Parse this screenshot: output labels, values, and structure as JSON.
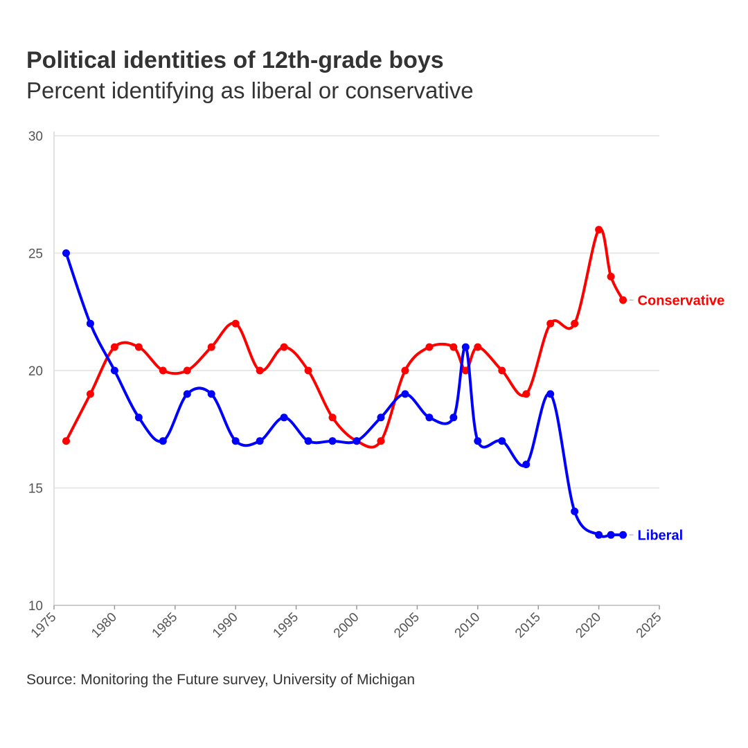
{
  "chart_data": {
    "type": "line",
    "title": "Political identities of 12th-grade boys",
    "subtitle": "Percent identifying as liberal or conservative",
    "source": "Source: Monitoring the Future survey, University of Michigan",
    "xlim": [
      1975,
      2025
    ],
    "ylim": [
      10,
      30
    ],
    "x_ticks": [
      1975,
      1980,
      1985,
      1990,
      1995,
      2000,
      2005,
      2010,
      2015,
      2020,
      2025
    ],
    "y_ticks": [
      10,
      15,
      20,
      25,
      30
    ],
    "grid": "horizontal",
    "legend": "direct labels at line ends",
    "series": [
      {
        "name": "Conservative",
        "color": "#ff0000",
        "x": [
          1976,
          1978,
          1980,
          1982,
          1984,
          1986,
          1988,
          1990,
          1992,
          1994,
          1996,
          1998,
          2000,
          2002,
          2004,
          2006,
          2008,
          2009,
          2010,
          2012,
          2014,
          2016,
          2018,
          2020,
          2021,
          2022
        ],
        "values": [
          17,
          19,
          21,
          21,
          20,
          20,
          21,
          22,
          20,
          21,
          20,
          18,
          17,
          17,
          20,
          21,
          21,
          20,
          21,
          20,
          19,
          22,
          22,
          26,
          24,
          23
        ]
      },
      {
        "name": "Liberal",
        "color": "#0000ff",
        "x": [
          1976,
          1978,
          1980,
          1982,
          1984,
          1986,
          1988,
          1990,
          1992,
          1994,
          1996,
          1998,
          2000,
          2002,
          2004,
          2006,
          2008,
          2009,
          2010,
          2012,
          2014,
          2016,
          2018,
          2020,
          2021,
          2022
        ],
        "values": [
          25,
          22,
          20,
          18,
          17,
          19,
          19,
          17,
          17,
          18,
          17,
          17,
          17,
          18,
          19,
          18,
          18,
          21,
          17,
          17,
          16,
          19,
          14,
          13,
          13,
          13
        ]
      }
    ]
  }
}
